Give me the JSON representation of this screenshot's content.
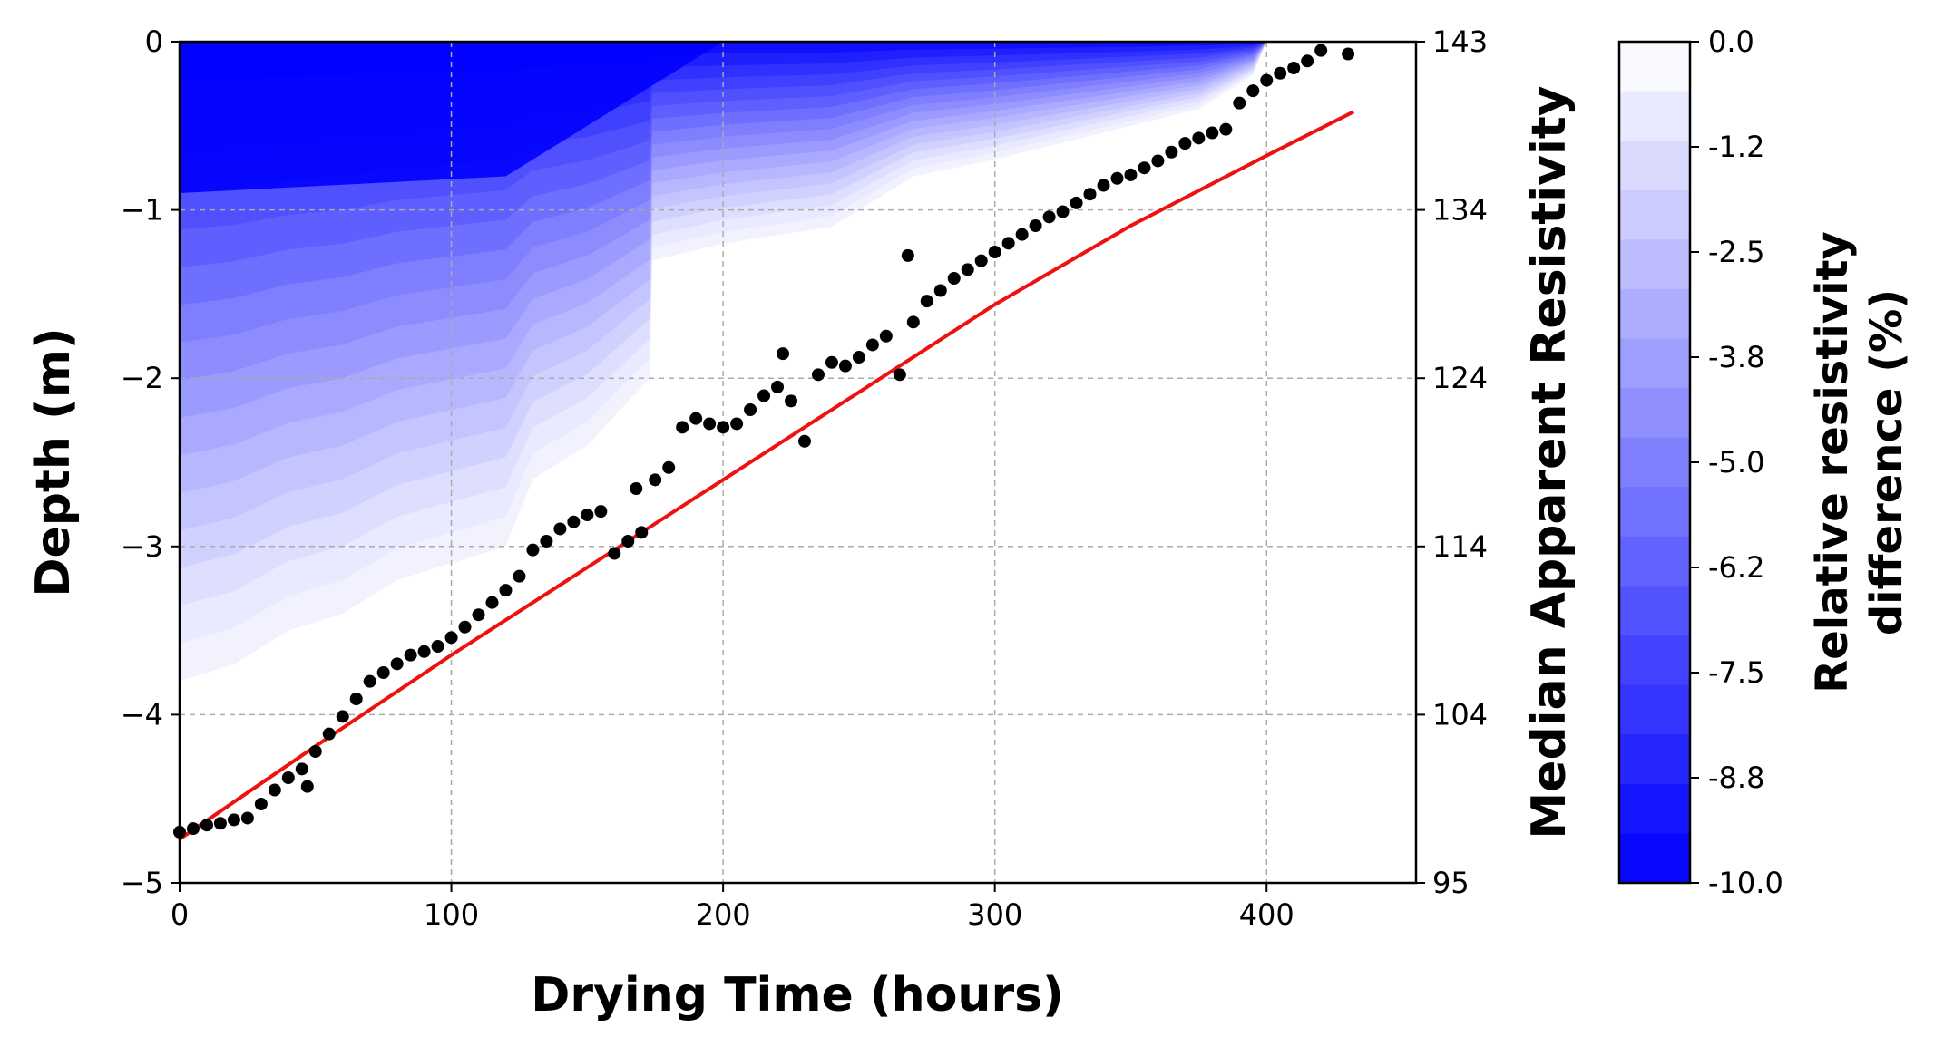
{
  "chart_data": {
    "type": "scatter",
    "xlabel": "Drying Time (hours)",
    "ylabel": "Depth (m)",
    "y2label": "Median Apparent Resistivity",
    "colorbar_label_line1": "Relative resistivity",
    "colorbar_label_line2": "difference (%)",
    "xlim": [
      0,
      455
    ],
    "ylim": [
      -5,
      0
    ],
    "y2lim": [
      95,
      143
    ],
    "clim": [
      -10.0,
      0.0
    ],
    "grid": true,
    "x_ticks": [
      {
        "value": 0,
        "label": "0"
      },
      {
        "value": 100,
        "label": "100"
      },
      {
        "value": 200,
        "label": "200"
      },
      {
        "value": 300,
        "label": "300"
      },
      {
        "value": 400,
        "label": "400"
      }
    ],
    "y_ticks": [
      {
        "value": 0,
        "label": "0"
      },
      {
        "value": -1,
        "label": "−1"
      },
      {
        "value": -2,
        "label": "−2"
      },
      {
        "value": -3,
        "label": "−3"
      },
      {
        "value": -4,
        "label": "−4"
      },
      {
        "value": -5,
        "label": "−5"
      }
    ],
    "y2_ticks": [
      {
        "value": 0,
        "label": "143"
      },
      {
        "value": -1,
        "label": "134"
      },
      {
        "value": -2,
        "label": "124"
      },
      {
        "value": -3,
        "label": "114"
      },
      {
        "value": -4,
        "label": "104"
      },
      {
        "value": -5,
        "label": "95"
      }
    ],
    "colorbar_ticks": [
      "0.0",
      "-1.2",
      "-2.5",
      "-3.8",
      "-5.0",
      "-6.2",
      "-7.5",
      "-8.8",
      "-10.0"
    ],
    "colorbar_levels": 17,
    "colors": {
      "scatter": "#000000",
      "fit_line": "#ee1111",
      "contour_max": "#0000ff",
      "contour_min": "#ffffff",
      "grid": "#aaaaaa"
    },
    "contour_front": [
      [
        0,
        -3.8
      ],
      [
        20,
        -3.7
      ],
      [
        40,
        -3.5
      ],
      [
        60,
        -3.4
      ],
      [
        80,
        -3.2
      ],
      [
        100,
        -3.1
      ],
      [
        120,
        -3.0
      ],
      [
        130,
        -2.6
      ],
      [
        150,
        -2.4
      ],
      [
        173,
        -2.0
      ],
      [
        174,
        -1.3
      ],
      [
        200,
        -1.2
      ],
      [
        240,
        -1.1
      ],
      [
        250,
        -1.0
      ],
      [
        270,
        -0.8
      ],
      [
        300,
        -0.7
      ],
      [
        350,
        -0.5
      ],
      [
        375,
        -0.4
      ],
      [
        395,
        -0.2
      ],
      [
        400,
        0
      ]
    ],
    "fit_line": [
      [
        0,
        97.5
      ],
      [
        50,
        102.8
      ],
      [
        100,
        108.0
      ],
      [
        150,
        113.0
      ],
      [
        200,
        118.0
      ],
      [
        250,
        123.0
      ],
      [
        300,
        128.0
      ],
      [
        350,
        132.5
      ],
      [
        400,
        136.5
      ],
      [
        432,
        139.0
      ]
    ],
    "points": [
      [
        0,
        97.9
      ],
      [
        5,
        98.1
      ],
      [
        10,
        98.3
      ],
      [
        15,
        98.4
      ],
      [
        20,
        98.6
      ],
      [
        25,
        98.7
      ],
      [
        30,
        99.5
      ],
      [
        35,
        100.3
      ],
      [
        40,
        101.0
      ],
      [
        45,
        101.5
      ],
      [
        47,
        100.5
      ],
      [
        50,
        102.5
      ],
      [
        55,
        103.5
      ],
      [
        60,
        104.5
      ],
      [
        65,
        105.5
      ],
      [
        70,
        106.5
      ],
      [
        75,
        107.0
      ],
      [
        80,
        107.5
      ],
      [
        85,
        108.0
      ],
      [
        90,
        108.2
      ],
      [
        95,
        108.5
      ],
      [
        100,
        109.0
      ],
      [
        105,
        109.6
      ],
      [
        110,
        110.3
      ],
      [
        115,
        111.0
      ],
      [
        120,
        111.7
      ],
      [
        125,
        112.5
      ],
      [
        130,
        114.0
      ],
      [
        135,
        114.5
      ],
      [
        140,
        115.2
      ],
      [
        145,
        115.6
      ],
      [
        150,
        116.0
      ],
      [
        155,
        116.2
      ],
      [
        160,
        113.8
      ],
      [
        165,
        114.5
      ],
      [
        168,
        117.5
      ],
      [
        170,
        115.0
      ],
      [
        175,
        118.0
      ],
      [
        180,
        118.7
      ],
      [
        185,
        121.0
      ],
      [
        190,
        121.5
      ],
      [
        195,
        121.2
      ],
      [
        200,
        121.0
      ],
      [
        205,
        121.2
      ],
      [
        210,
        122.0
      ],
      [
        215,
        122.8
      ],
      [
        220,
        123.3
      ],
      [
        222,
        125.2
      ],
      [
        225,
        122.5
      ],
      [
        230,
        120.2
      ],
      [
        235,
        124.0
      ],
      [
        240,
        124.7
      ],
      [
        245,
        124.5
      ],
      [
        250,
        125.0
      ],
      [
        255,
        125.7
      ],
      [
        260,
        126.2
      ],
      [
        265,
        124.0
      ],
      [
        268,
        130.8
      ],
      [
        270,
        127.0
      ],
      [
        275,
        128.2
      ],
      [
        280,
        128.8
      ],
      [
        285,
        129.5
      ],
      [
        290,
        130.0
      ],
      [
        295,
        130.5
      ],
      [
        300,
        131.0
      ],
      [
        305,
        131.5
      ],
      [
        310,
        132.0
      ],
      [
        315,
        132.5
      ],
      [
        320,
        133.0
      ],
      [
        325,
        133.3
      ],
      [
        330,
        133.8
      ],
      [
        335,
        134.3
      ],
      [
        340,
        134.8
      ],
      [
        345,
        135.2
      ],
      [
        350,
        135.4
      ],
      [
        355,
        135.8
      ],
      [
        360,
        136.2
      ],
      [
        365,
        136.7
      ],
      [
        370,
        137.2
      ],
      [
        375,
        137.5
      ],
      [
        380,
        137.8
      ],
      [
        385,
        138.0
      ],
      [
        390,
        139.5
      ],
      [
        395,
        140.2
      ],
      [
        400,
        140.8
      ],
      [
        405,
        141.2
      ],
      [
        410,
        141.5
      ],
      [
        415,
        141.9
      ],
      [
        420,
        142.5
      ],
      [
        430,
        142.3
      ]
    ]
  }
}
